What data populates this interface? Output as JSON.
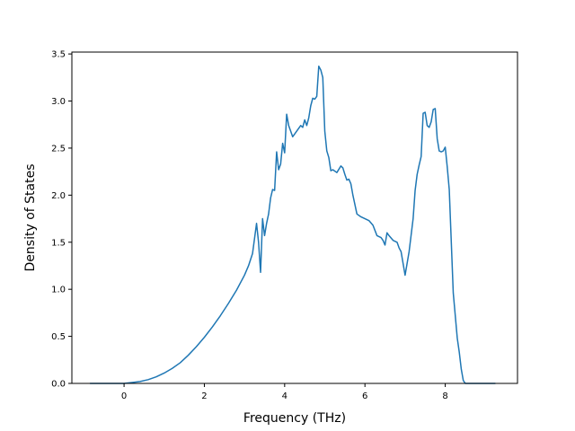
{
  "chart_data": {
    "type": "line",
    "title": "",
    "xlabel": "Frequency (THz)",
    "ylabel": "Density of States",
    "xlim": [
      -1.3,
      9.8
    ],
    "ylim": [
      0.0,
      3.52
    ],
    "xticks": [
      0,
      2,
      4,
      6,
      8
    ],
    "yticks": [
      0.0,
      0.5,
      1.0,
      1.5,
      2.0,
      2.5,
      3.0,
      3.5
    ],
    "xtick_labels": [
      "0",
      "2",
      "4",
      "6",
      "8"
    ],
    "ytick_labels": [
      "0.0",
      "0.5",
      "1.0",
      "1.5",
      "2.0",
      "2.5",
      "3.0",
      "3.5"
    ],
    "grid": false,
    "legend": "none",
    "series": [
      {
        "color": "#1f77b4",
        "x": [
          -0.85,
          -0.5,
          -0.2,
          0.0,
          0.2,
          0.4,
          0.6,
          0.8,
          1.0,
          1.2,
          1.4,
          1.6,
          1.8,
          2.0,
          2.2,
          2.4,
          2.6,
          2.8,
          3.0,
          3.1,
          3.2,
          3.3,
          3.35,
          3.4,
          3.45,
          3.5,
          3.55,
          3.6,
          3.65,
          3.7,
          3.75,
          3.8,
          3.85,
          3.9,
          3.95,
          4.0,
          4.05,
          4.1,
          4.15,
          4.2,
          4.3,
          4.4,
          4.45,
          4.5,
          4.55,
          4.6,
          4.65,
          4.7,
          4.75,
          4.8,
          4.85,
          4.9,
          4.95,
          5.0,
          5.05,
          5.1,
          5.15,
          5.2,
          5.3,
          5.4,
          5.45,
          5.5,
          5.55,
          5.6,
          5.65,
          5.7,
          5.8,
          5.9,
          6.0,
          6.1,
          6.2,
          6.3,
          6.4,
          6.45,
          6.5,
          6.55,
          6.6,
          6.7,
          6.8,
          6.85,
          6.9,
          7.0,
          7.1,
          7.2,
          7.25,
          7.3,
          7.35,
          7.4,
          7.45,
          7.5,
          7.55,
          7.6,
          7.65,
          7.7,
          7.75,
          7.8,
          7.85,
          7.9,
          7.95,
          8.0,
          8.05,
          8.1,
          8.2,
          8.3,
          8.35,
          8.4,
          8.45,
          8.5,
          8.7,
          9.0,
          9.25
        ],
        "y": [
          0.0,
          0.0,
          0.0,
          0.0,
          0.01,
          0.02,
          0.04,
          0.07,
          0.11,
          0.16,
          0.22,
          0.3,
          0.39,
          0.49,
          0.6,
          0.72,
          0.85,
          0.99,
          1.15,
          1.25,
          1.38,
          1.7,
          1.5,
          1.18,
          1.75,
          1.57,
          1.7,
          1.8,
          1.97,
          2.06,
          2.05,
          2.46,
          2.27,
          2.33,
          2.55,
          2.45,
          2.86,
          2.74,
          2.68,
          2.62,
          2.68,
          2.74,
          2.72,
          2.8,
          2.74,
          2.82,
          2.95,
          3.03,
          3.02,
          3.05,
          3.37,
          3.33,
          3.25,
          2.68,
          2.47,
          2.4,
          2.26,
          2.27,
          2.24,
          2.31,
          2.29,
          2.22,
          2.16,
          2.17,
          2.12,
          2.0,
          1.8,
          1.77,
          1.75,
          1.73,
          1.68,
          1.57,
          1.55,
          1.52,
          1.47,
          1.6,
          1.57,
          1.52,
          1.5,
          1.44,
          1.4,
          1.15,
          1.4,
          1.75,
          2.05,
          2.22,
          2.32,
          2.41,
          2.87,
          2.88,
          2.74,
          2.72,
          2.78,
          2.91,
          2.92,
          2.6,
          2.47,
          2.46,
          2.47,
          2.51,
          2.3,
          2.06,
          0.96,
          0.48,
          0.33,
          0.15,
          0.03,
          0.0,
          0.0,
          0.0,
          0.0
        ]
      }
    ]
  }
}
